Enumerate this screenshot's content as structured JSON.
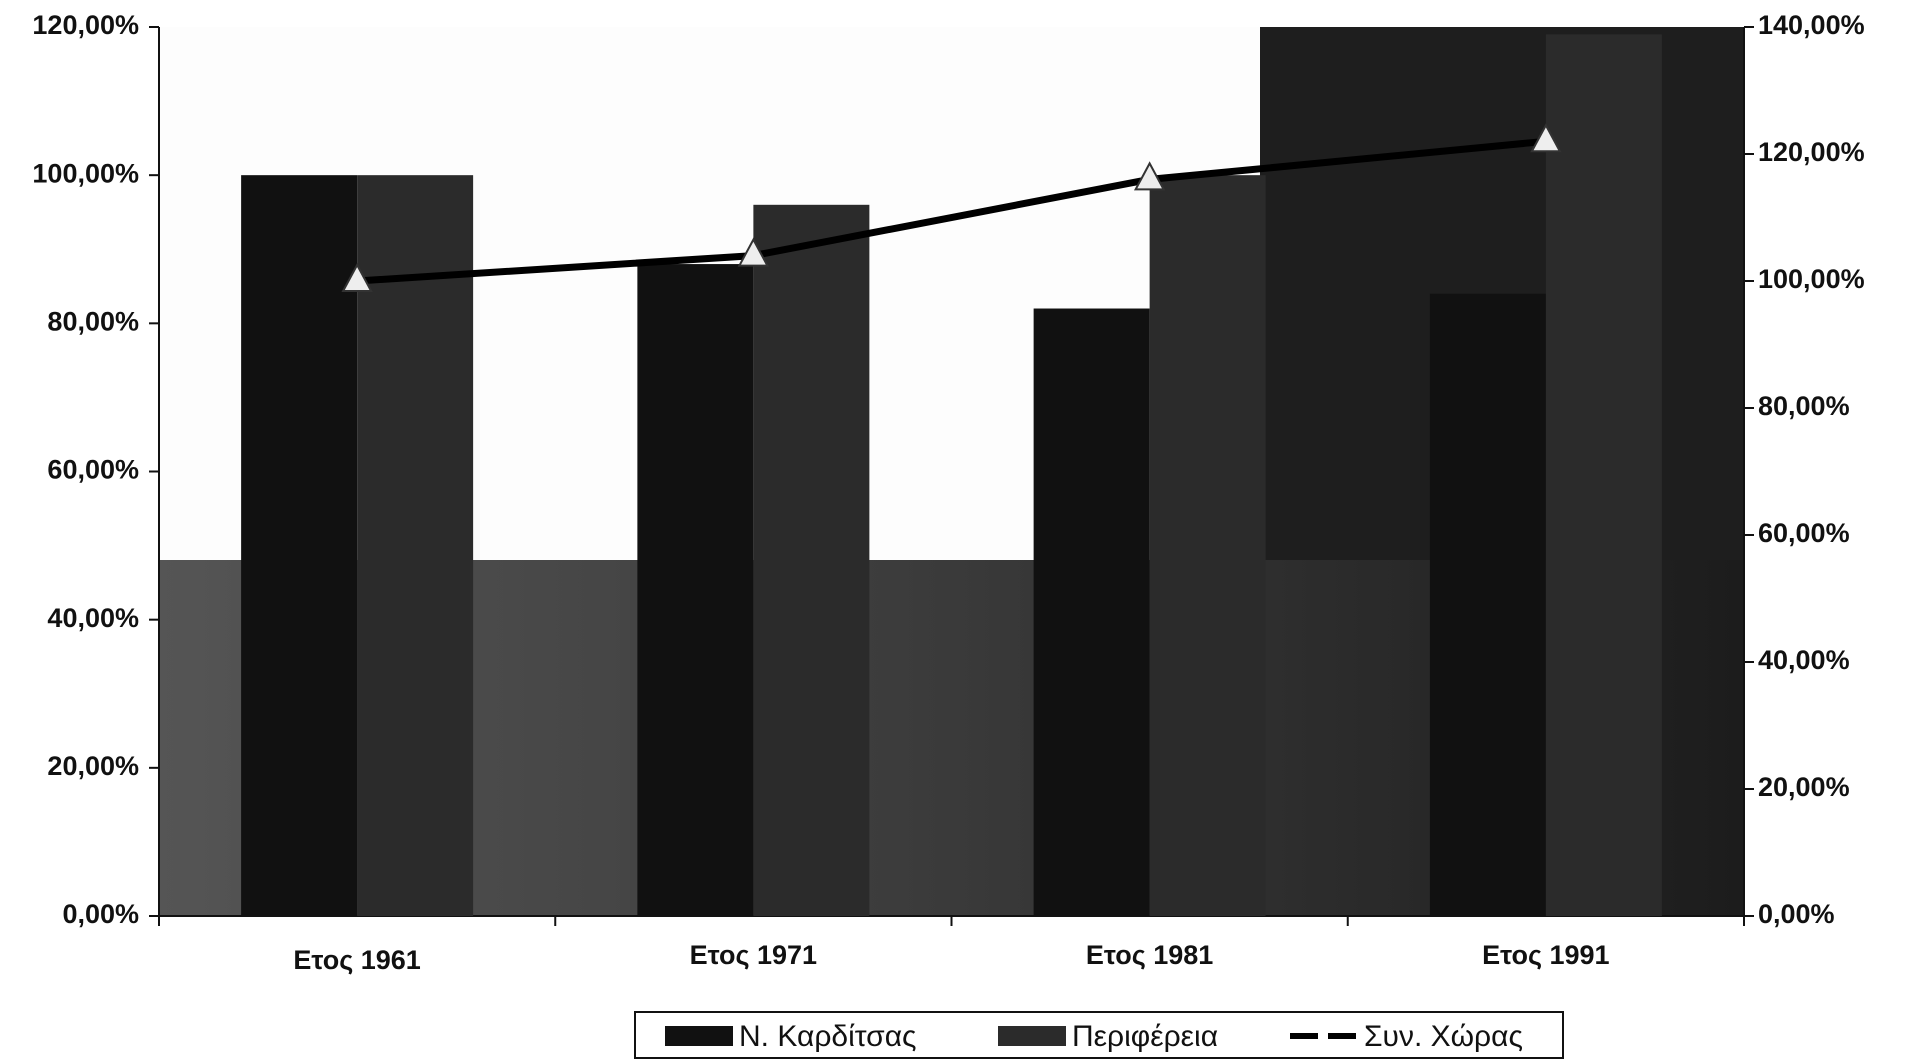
{
  "chart_data": {
    "type": "bar_line",
    "categories": [
      "Ετος 1961",
      "Ετος 1971",
      "Ετος 1981",
      "Ετος 1991"
    ],
    "series": [
      {
        "name": "Ν. Καρδίτσας",
        "color": "#111111",
        "type": "bar",
        "values": [
          100,
          88,
          82,
          84
        ]
      },
      {
        "name": "Περιφέρεια",
        "color": "#2b2b2b",
        "type": "bar",
        "values": [
          100,
          96,
          100,
          119
        ]
      },
      {
        "name": "Συν. Χώρας",
        "color": "#000000",
        "type": "line",
        "axis": "y2",
        "values": [
          100,
          104,
          116,
          122
        ]
      }
    ],
    "ylim": [
      0,
      120
    ],
    "yticks": [
      {
        "value": 0,
        "label": "0,00%"
      },
      {
        "value": 20,
        "label": "20,00%"
      },
      {
        "value": 40,
        "label": "40,00%"
      },
      {
        "value": 60,
        "label": "60,00%"
      },
      {
        "value": 80,
        "label": "80,00%"
      },
      {
        "value": 100,
        "label": "100,00%"
      },
      {
        "value": 120,
        "label": "120,00%"
      }
    ],
    "y2lim": [
      0,
      140
    ],
    "y2ticks": [
      {
        "value": 0,
        "label": "0,00%"
      },
      {
        "value": 20,
        "label": "20,00%"
      },
      {
        "value": 40,
        "label": "40,00%"
      },
      {
        "value": 60,
        "label": "60,00%"
      },
      {
        "value": 80,
        "label": "80,00%"
      },
      {
        "value": 100,
        "label": "100,00%"
      },
      {
        "value": 120,
        "label": "120,00%"
      },
      {
        "value": 140,
        "label": "140,00%"
      }
    ],
    "legend": "bottom"
  }
}
